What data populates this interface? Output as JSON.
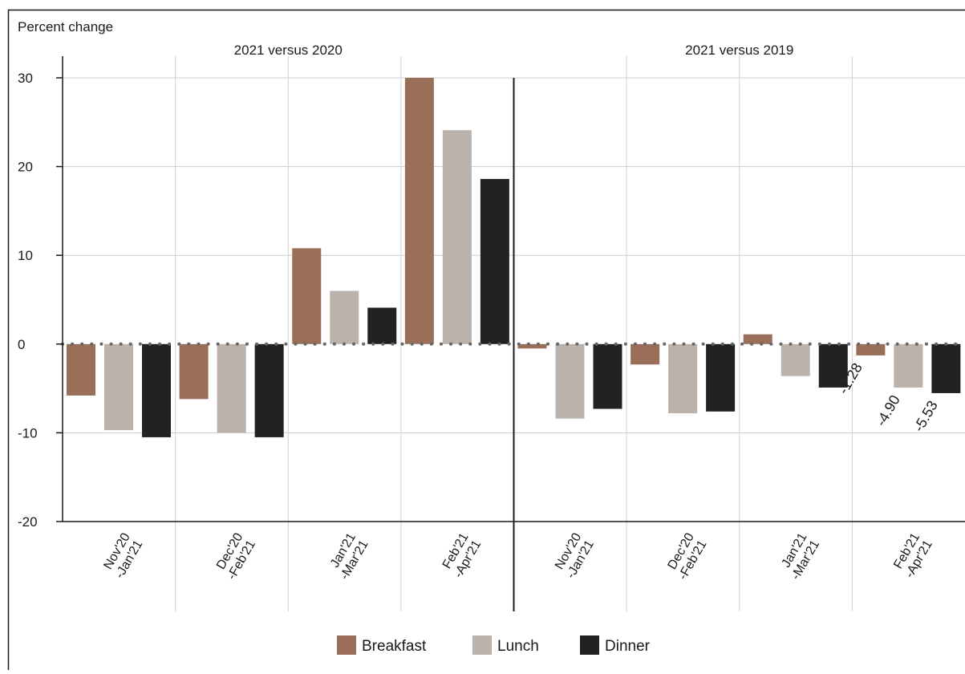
{
  "chart_data": {
    "type": "bar",
    "title": "",
    "ylabel": "Percent change",
    "xlabel": "",
    "ylim": [
      -20,
      30
    ],
    "yticks": [
      -20,
      -10,
      0,
      10,
      20,
      30
    ],
    "grid": true,
    "legend_placement": "bottom",
    "panels": [
      {
        "title": "2021 versus 2020",
        "categories": [
          [
            "Nov'20",
            "-Jan'21"
          ],
          [
            "Dec'20",
            "-Feb'21"
          ],
          [
            "Jan'21",
            "-Mar'21"
          ],
          [
            "Feb'21",
            "-Apr'21"
          ]
        ],
        "series": [
          {
            "name": "Breakfast",
            "values": [
              -5.8,
              -6.2,
              10.8,
              30.0
            ]
          },
          {
            "name": "Lunch",
            "values": [
              -9.7,
              -10.0,
              6.0,
              24.1
            ]
          },
          {
            "name": "Dinner",
            "values": [
              -10.5,
              -10.5,
              4.1,
              18.6
            ]
          }
        ],
        "data_labels": [
          [
            "",
            "",
            "",
            ""
          ],
          [
            "",
            "",
            "",
            ""
          ],
          [
            "",
            "",
            "",
            ""
          ]
        ]
      },
      {
        "title": "2021 versus 2019",
        "categories": [
          [
            "Nov'20",
            "-Jan'21"
          ],
          [
            "Dec'20",
            "-Feb'21"
          ],
          [
            "Jan'21",
            "-Mar'21"
          ],
          [
            "Feb'21",
            "-Apr'21"
          ]
        ],
        "series": [
          {
            "name": "Breakfast",
            "values": [
              -0.5,
              -2.3,
              1.1,
              -1.28
            ]
          },
          {
            "name": "Lunch",
            "values": [
              -8.4,
              -7.8,
              -3.6,
              -4.9
            ]
          },
          {
            "name": "Dinner",
            "values": [
              -7.3,
              -7.6,
              -4.9,
              -5.53
            ]
          }
        ],
        "data_labels": [
          [
            "",
            "",
            "",
            "-1.28"
          ],
          [
            "",
            "",
            "",
            "-4.90"
          ],
          [
            "",
            "",
            "",
            "-5.53"
          ]
        ]
      }
    ],
    "colors": {
      "Breakfast": "#9a6f5a",
      "Lunch": "#bbb2ac",
      "Dinner": "#222222"
    }
  }
}
